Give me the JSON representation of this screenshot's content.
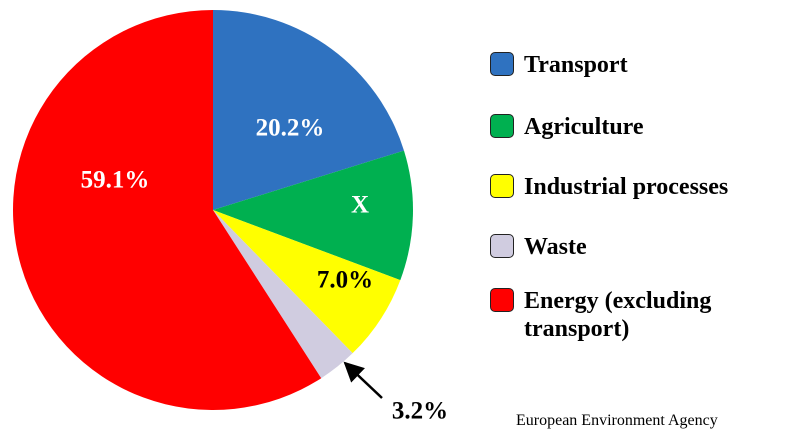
{
  "chart_data": {
    "type": "pie",
    "categories": [
      "Transport",
      "Agriculture",
      "Industrial processes",
      "Waste",
      "Energy (excluding transport)"
    ],
    "values": [
      20.2,
      10.5,
      7.0,
      3.2,
      59.1
    ],
    "value_labels": [
      "20.2%",
      "X",
      "7.0%",
      "3.2%",
      "59.1%"
    ],
    "colors": [
      "#2f72c0",
      "#00b050",
      "#ffff00",
      "#d0cce0",
      "#ff0000"
    ],
    "source": "European Environment Agency"
  }
}
